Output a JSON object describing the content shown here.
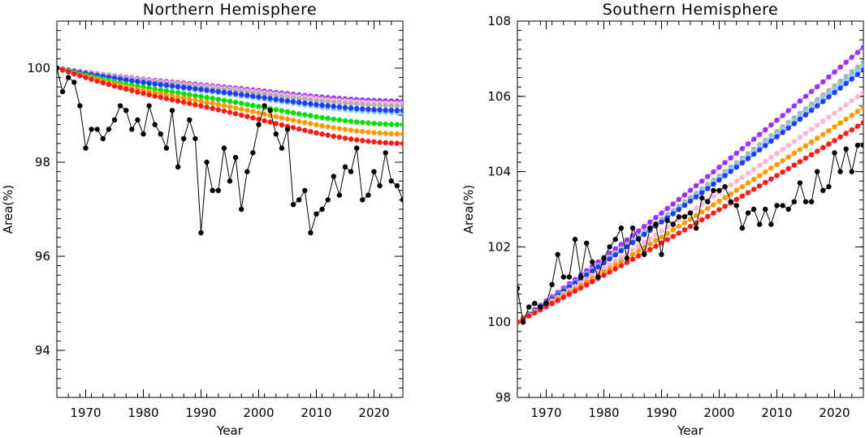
{
  "chart_data": [
    {
      "type": "line",
      "title": "Northern Hemisphere",
      "xlabel": "Year",
      "ylabel": "Area(%)",
      "xlim": [
        1965,
        2025
      ],
      "ylim": [
        93,
        101
      ],
      "xticks": [
        1970,
        1980,
        1990,
        2000,
        2010,
        2020
      ],
      "yticks": [
        94,
        96,
        98,
        100
      ],
      "series": [
        {
          "name": "purple",
          "color": "#9b30ff",
          "start": 100.0,
          "end": 99.3,
          "shape": "nh_smooth"
        },
        {
          "name": "pink",
          "color": "#ffb6d9",
          "start": 100.0,
          "end": 99.25,
          "shape": "nh_smooth"
        },
        {
          "name": "gray",
          "color": "#b0b0b0",
          "start": 100.0,
          "end": 99.2,
          "shape": "nh_smooth"
        },
        {
          "name": "light-blue",
          "color": "#87cefa",
          "start": 100.0,
          "end": 99.05,
          "shape": "nh_smooth"
        },
        {
          "name": "blue",
          "color": "#1e3cff",
          "start": 100.0,
          "end": 99.1,
          "shape": "nh_smooth"
        },
        {
          "name": "green",
          "color": "#00e000",
          "start": 100.0,
          "end": 98.8,
          "shape": "nh_smooth"
        },
        {
          "name": "orange",
          "color": "#ff9900",
          "start": 100.0,
          "end": 98.6,
          "shape": "nh_smooth"
        },
        {
          "name": "red",
          "color": "#ff1a1a",
          "start": 100.0,
          "end": 98.4,
          "shape": "nh_smooth"
        },
        {
          "name": "black",
          "color": "#000000",
          "x": [
            1965,
            1966,
            1967,
            1968,
            1969,
            1970,
            1971,
            1972,
            1973,
            1974,
            1975,
            1976,
            1977,
            1978,
            1979,
            1980,
            1981,
            1982,
            1983,
            1984,
            1985,
            1986,
            1987,
            1988,
            1989,
            1990,
            1991,
            1992,
            1993,
            1994,
            1995,
            1996,
            1997,
            1998,
            1999,
            2000,
            2001,
            2002,
            2003,
            2004,
            2005,
            2006,
            2007,
            2008,
            2009,
            2010,
            2011,
            2012,
            2013,
            2014,
            2015,
            2016,
            2017,
            2018,
            2019,
            2020,
            2021,
            2022,
            2023,
            2024,
            2025
          ],
          "y": [
            100.0,
            99.5,
            99.8,
            99.7,
            99.2,
            98.3,
            98.7,
            98.7,
            98.5,
            98.7,
            98.9,
            99.2,
            99.1,
            98.7,
            98.9,
            98.6,
            99.2,
            98.8,
            98.6,
            98.3,
            99.1,
            97.9,
            98.5,
            98.9,
            98.5,
            96.5,
            98.0,
            97.4,
            97.4,
            98.3,
            97.6,
            98.1,
            97.0,
            97.8,
            98.2,
            98.8,
            99.2,
            99.1,
            98.6,
            98.3,
            98.7,
            97.1,
            97.2,
            97.4,
            96.5,
            96.9,
            97.0,
            97.2,
            97.7,
            97.3,
            97.9,
            97.8,
            98.3,
            97.2,
            97.3,
            97.8,
            97.5,
            98.2,
            97.6,
            97.5,
            97.2
          ]
        }
      ]
    },
    {
      "type": "line",
      "title": "Southern Hemisphere",
      "xlabel": "Year",
      "ylabel": "Area(%)",
      "xlim": [
        1965,
        2025
      ],
      "ylim": [
        98,
        108
      ],
      "xticks": [
        1970,
        1980,
        1990,
        2000,
        2010,
        2020
      ],
      "yticks": [
        98,
        100,
        102,
        104,
        106,
        108
      ],
      "series": [
        {
          "name": "purple",
          "color": "#9b30ff",
          "start": 100.0,
          "end": 107.3,
          "shape": "sh_smooth"
        },
        {
          "name": "gray",
          "color": "#b0b0b0",
          "start": 100.0,
          "end": 106.9,
          "shape": "sh_smooth"
        },
        {
          "name": "light-blue",
          "color": "#87cefa",
          "start": 100.0,
          "end": 106.8,
          "shape": "sh_smooth"
        },
        {
          "name": "blue",
          "color": "#1e3cff",
          "start": 100.0,
          "end": 106.7,
          "shape": "sh_smooth"
        },
        {
          "name": "pink",
          "color": "#ffb6d9",
          "start": 100.0,
          "end": 106.1,
          "shape": "sh_smooth"
        },
        {
          "name": "orange",
          "color": "#ff9900",
          "start": 100.0,
          "end": 105.7,
          "shape": "sh_smooth"
        },
        {
          "name": "red",
          "color": "#ff1a1a",
          "start": 100.0,
          "end": 105.3,
          "shape": "sh_smooth"
        },
        {
          "name": "black",
          "color": "#000000",
          "x": [
            1965,
            1966,
            1967,
            1968,
            1969,
            1970,
            1971,
            1972,
            1973,
            1974,
            1975,
            1976,
            1977,
            1978,
            1979,
            1980,
            1981,
            1982,
            1983,
            1984,
            1985,
            1986,
            1987,
            1988,
            1989,
            1990,
            1991,
            1992,
            1993,
            1994,
            1995,
            1996,
            1997,
            1998,
            1999,
            2000,
            2001,
            2002,
            2003,
            2004,
            2005,
            2006,
            2007,
            2008,
            2009,
            2010,
            2011,
            2012,
            2013,
            2014,
            2015,
            2016,
            2017,
            2018,
            2019,
            2020,
            2021,
            2022,
            2023,
            2024,
            2025
          ],
          "y": [
            100.9,
            100.0,
            100.4,
            100.5,
            100.4,
            100.5,
            101.0,
            101.8,
            101.2,
            101.2,
            102.2,
            101.2,
            102.1,
            101.6,
            101.2,
            101.7,
            102.0,
            102.2,
            102.5,
            101.7,
            102.5,
            102.2,
            101.8,
            102.5,
            102.6,
            101.8,
            102.7,
            102.6,
            102.8,
            102.8,
            102.9,
            102.5,
            103.3,
            103.2,
            103.5,
            103.5,
            103.6,
            103.2,
            103.1,
            102.5,
            102.9,
            103.0,
            102.6,
            103.0,
            102.6,
            103.1,
            103.1,
            103.0,
            103.2,
            103.7,
            103.2,
            103.2,
            104.0,
            103.5,
            103.6,
            104.5,
            104.0,
            104.6,
            104.0,
            104.7,
            104.7
          ]
        }
      ]
    }
  ]
}
